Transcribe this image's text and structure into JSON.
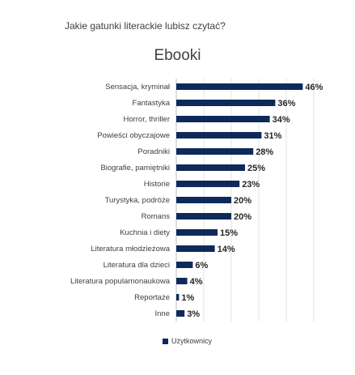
{
  "question": "Jakie gatunki literackie lubisz czytać?",
  "chart_data": {
    "type": "bar",
    "orientation": "horizontal",
    "title": "Ebooki",
    "categories": [
      "Sensacja, kryminał",
      "Fantastyka",
      "Horror, thriller",
      "Powieści obyczajowe",
      "Poradniki",
      "Biografie, pamiętniki",
      "Historie",
      "Turystyka, podróże",
      "Romans",
      "Kuchnia i diety",
      "Literatura młodzieżowa",
      "Literatura dla dzieci",
      "Literatura popularnonaukowa",
      "Reportaże",
      "Inne"
    ],
    "series": [
      {
        "name": "Użytkownicy",
        "values": [
          46,
          36,
          34,
          31,
          28,
          25,
          23,
          20,
          20,
          15,
          14,
          6,
          4,
          1,
          3
        ],
        "labels": [
          "46%",
          "36%",
          "34%",
          "31%",
          "28%",
          "25%",
          "23%",
          "20%",
          "20%",
          "15%",
          "14%",
          "6%",
          "4%",
          "1%",
          "3%"
        ],
        "color": "#0e2a5a"
      }
    ],
    "xlim": [
      0,
      50
    ],
    "grid": true,
    "legend": "bottom"
  }
}
